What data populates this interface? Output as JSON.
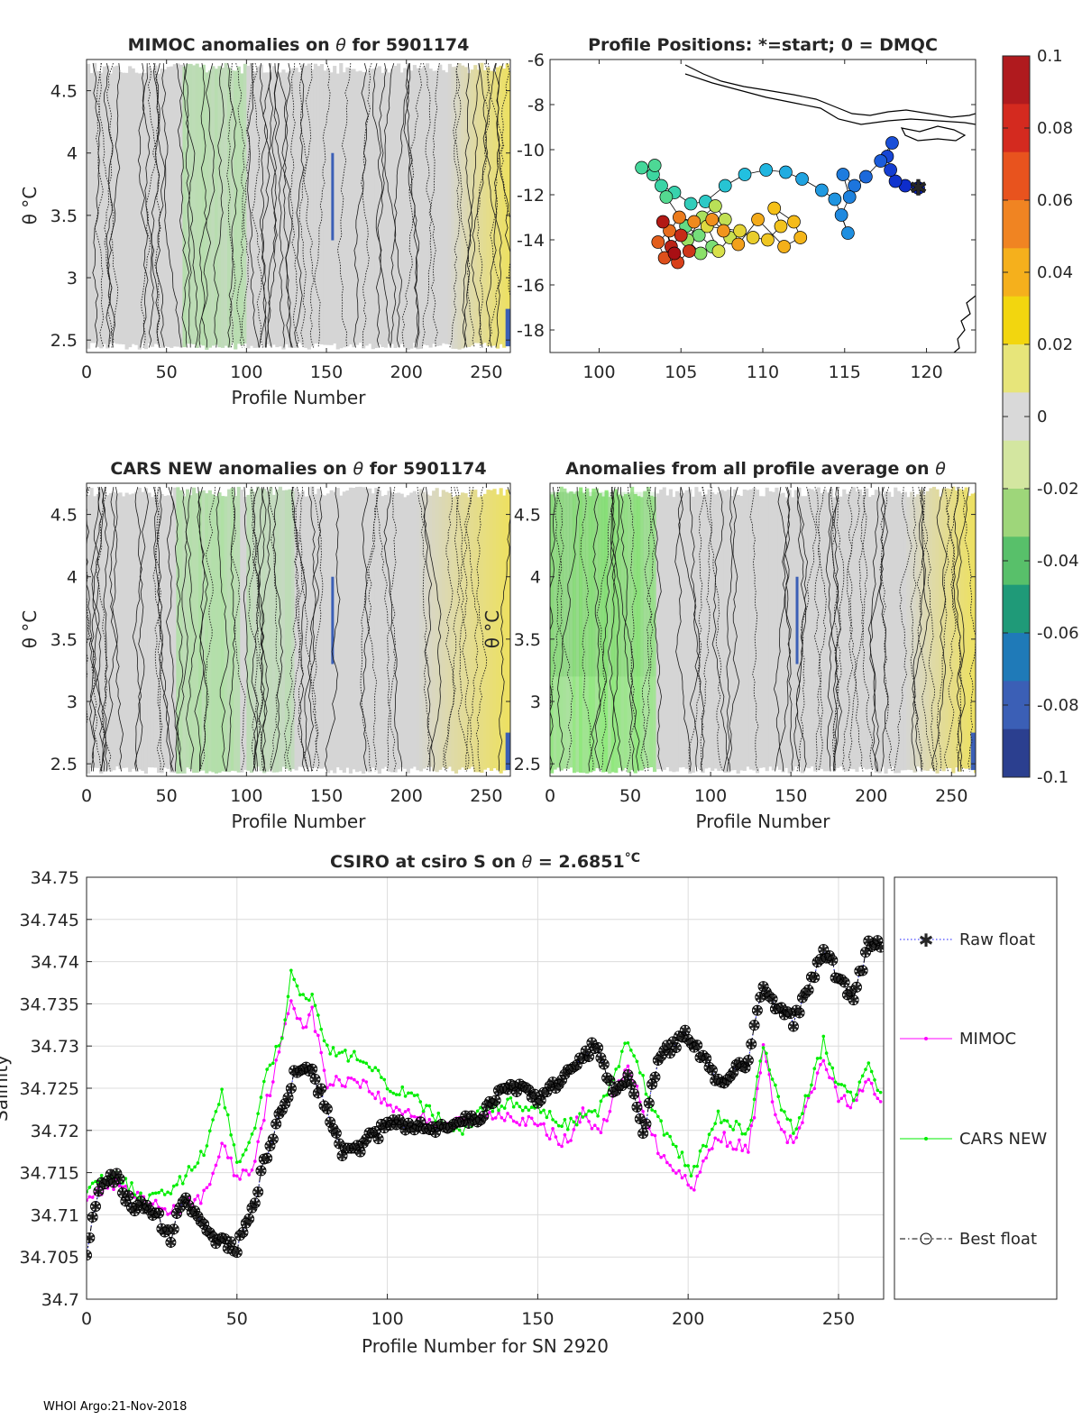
{
  "footer": "WHOI Argo:21-Nov-2018",
  "chart_data": [
    {
      "type": "heatmap",
      "title_prefix": "MIMOC anomalies on ",
      "theta_symbol": "θ",
      "title_suffix": "  for 5901174",
      "xlabel": "Profile Number",
      "ylabel": "θ °C",
      "xlim": [
        0,
        265
      ],
      "ylim": [
        2.4,
        4.75
      ],
      "xticks": [
        "0",
        "50",
        "100",
        "150",
        "200",
        "250"
      ],
      "yticks": [
        "2.5",
        "3",
        "3.5",
        "4",
        "4.5"
      ],
      "base_color": "#d5d5d5"
    },
    {
      "type": "scatter",
      "title": "Profile Positions: *=start; 0 = DMQC",
      "xlim": [
        97,
        123
      ],
      "ylim": [
        -19,
        -6
      ],
      "xticks": [
        "100",
        "105",
        "110",
        "115",
        "120"
      ],
      "yticks": [
        "-6",
        "-8",
        "-10",
        "-12",
        "-14",
        "-16",
        "-18"
      ],
      "start_marker": [
        119.5,
        -11.7
      ],
      "track": [
        {
          "lon": 119.5,
          "lat": -11.7,
          "c": 0.0
        },
        {
          "lon": 118.7,
          "lat": -11.6,
          "c": 0.02
        },
        {
          "lon": 118.1,
          "lat": -11.4,
          "c": 0.04
        },
        {
          "lon": 117.8,
          "lat": -10.9,
          "c": 0.06
        },
        {
          "lon": 117.6,
          "lat": -10.3,
          "c": 0.08
        },
        {
          "lon": 117.9,
          "lat": -9.7,
          "c": 0.1
        },
        {
          "lon": 117.2,
          "lat": -10.5,
          "c": 0.12
        },
        {
          "lon": 116.3,
          "lat": -11.2,
          "c": 0.14
        },
        {
          "lon": 115.6,
          "lat": -11.6,
          "c": 0.16
        },
        {
          "lon": 114.9,
          "lat": -11.1,
          "c": 0.17
        },
        {
          "lon": 115.3,
          "lat": -12.1,
          "c": 0.18
        },
        {
          "lon": 114.8,
          "lat": -12.9,
          "c": 0.19
        },
        {
          "lon": 115.2,
          "lat": -13.7,
          "c": 0.2
        },
        {
          "lon": 114.4,
          "lat": -12.2,
          "c": 0.21
        },
        {
          "lon": 113.6,
          "lat": -11.8,
          "c": 0.22
        },
        {
          "lon": 112.4,
          "lat": -11.3,
          "c": 0.24
        },
        {
          "lon": 111.4,
          "lat": -11.0,
          "c": 0.26
        },
        {
          "lon": 110.2,
          "lat": -10.9,
          "c": 0.28
        },
        {
          "lon": 108.9,
          "lat": -11.1,
          "c": 0.3
        },
        {
          "lon": 107.7,
          "lat": -11.6,
          "c": 0.32
        },
        {
          "lon": 106.5,
          "lat": -12.3,
          "c": 0.34
        },
        {
          "lon": 105.6,
          "lat": -12.4,
          "c": 0.36
        },
        {
          "lon": 104.6,
          "lat": -11.9,
          "c": 0.38
        },
        {
          "lon": 103.8,
          "lat": -11.6,
          "c": 0.39
        },
        {
          "lon": 103.3,
          "lat": -11.1,
          "c": 0.4
        },
        {
          "lon": 102.6,
          "lat": -10.8,
          "c": 0.41
        },
        {
          "lon": 103.4,
          "lat": -10.7,
          "c": 0.42
        },
        {
          "lon": 104.1,
          "lat": -12.1,
          "c": 0.43
        },
        {
          "lon": 105.3,
          "lat": -13.4,
          "c": 0.45
        },
        {
          "lon": 106.1,
          "lat": -13.8,
          "c": 0.47
        },
        {
          "lon": 106.9,
          "lat": -14.3,
          "c": 0.48
        },
        {
          "lon": 106.2,
          "lat": -14.6,
          "c": 0.5
        },
        {
          "lon": 105.4,
          "lat": -14.0,
          "c": 0.52
        },
        {
          "lon": 106.3,
          "lat": -13.0,
          "c": 0.54
        },
        {
          "lon": 107.1,
          "lat": -12.5,
          "c": 0.56
        },
        {
          "lon": 107.7,
          "lat": -13.1,
          "c": 0.57
        },
        {
          "lon": 108.0,
          "lat": -13.9,
          "c": 0.58
        },
        {
          "lon": 107.3,
          "lat": -14.5,
          "c": 0.6
        },
        {
          "lon": 106.6,
          "lat": -13.4,
          "c": 0.62
        },
        {
          "lon": 108.6,
          "lat": -13.6,
          "c": 0.64
        },
        {
          "lon": 109.4,
          "lat": -13.9,
          "c": 0.66
        },
        {
          "lon": 110.3,
          "lat": -14.0,
          "c": 0.68
        },
        {
          "lon": 111.1,
          "lat": -13.4,
          "c": 0.69
        },
        {
          "lon": 110.7,
          "lat": -12.6,
          "c": 0.7
        },
        {
          "lon": 111.9,
          "lat": -13.2,
          "c": 0.71
        },
        {
          "lon": 112.3,
          "lat": -13.9,
          "c": 0.72
        },
        {
          "lon": 111.3,
          "lat": -14.3,
          "c": 0.73
        },
        {
          "lon": 109.7,
          "lat": -13.1,
          "c": 0.74
        },
        {
          "lon": 108.5,
          "lat": -14.2,
          "c": 0.76
        },
        {
          "lon": 107.6,
          "lat": -13.6,
          "c": 0.78
        },
        {
          "lon": 106.9,
          "lat": -13.1,
          "c": 0.79
        },
        {
          "lon": 105.8,
          "lat": -13.2,
          "c": 0.8
        },
        {
          "lon": 104.9,
          "lat": -13.0,
          "c": 0.82
        },
        {
          "lon": 104.3,
          "lat": -13.6,
          "c": 0.84
        },
        {
          "lon": 103.6,
          "lat": -14.1,
          "c": 0.86
        },
        {
          "lon": 104.0,
          "lat": -14.8,
          "c": 0.88
        },
        {
          "lon": 104.8,
          "lat": -15.0,
          "c": 0.9
        },
        {
          "lon": 105.5,
          "lat": -14.5,
          "c": 0.92
        },
        {
          "lon": 105.0,
          "lat": -13.8,
          "c": 0.94
        },
        {
          "lon": 104.4,
          "lat": -14.3,
          "c": 0.96
        },
        {
          "lon": 103.9,
          "lat": -13.2,
          "c": 0.98
        },
        {
          "lon": 104.6,
          "lat": -14.6,
          "c": 1.0
        }
      ]
    },
    {
      "type": "heatmap",
      "title_prefix": "CARS NEW anomalies on ",
      "theta_symbol": "θ",
      "title_suffix": " for 5901174",
      "xlabel": "Profile Number",
      "ylabel": "θ °C",
      "xlim": [
        0,
        265
      ],
      "ylim": [
        2.4,
        4.75
      ],
      "xticks": [
        "0",
        "50",
        "100",
        "150",
        "200",
        "250"
      ],
      "yticks": [
        "2.5",
        "3",
        "3.5",
        "4",
        "4.5"
      ],
      "base_color": "#d5d5d5"
    },
    {
      "type": "heatmap",
      "title_prefix": "Anomalies from all profile average on ",
      "theta_symbol": "θ",
      "title_suffix": "",
      "xlabel": "Profile Number",
      "ylabel": "θ °C",
      "xlim": [
        0,
        265
      ],
      "ylim": [
        2.4,
        4.75
      ],
      "xticks": [
        "0",
        "50",
        "100",
        "150",
        "200",
        "250"
      ],
      "yticks": [
        "2.5",
        "3",
        "3.5",
        "4",
        "4.5"
      ],
      "base_color": "#d5d5d5"
    },
    {
      "type": "colorbar",
      "ticks": [
        "0.1",
        "0.08",
        "0.06",
        "0.04",
        "0.02",
        "0",
        "-0.02",
        "-0.04",
        "-0.06",
        "-0.08",
        "-0.1"
      ],
      "colors": [
        "#b01a1e",
        "#d42a1f",
        "#e8531e",
        "#f08422",
        "#f5b01c",
        "#f2d60f",
        "#e7e57a",
        "#d9d9d9",
        "#d3e6a0",
        "#9ed67a",
        "#58c06a",
        "#1f9a78",
        "#1f7ab8",
        "#3b5fb6",
        "#2b3f8f"
      ]
    },
    {
      "type": "line",
      "title_prefix": "CSIRO at csiro S on ",
      "theta_symbol": "θ",
      "title_suffix": " = 2.6851",
      "title_unit": "°C",
      "xlabel": "Profile Number for SN 2920",
      "ylabel": "Salinity",
      "xlim": [
        0,
        265
      ],
      "ylim": [
        34.7,
        34.75
      ],
      "xticks": [
        "0",
        "50",
        "100",
        "150",
        "200",
        "250"
      ],
      "yticks": [
        "34.7",
        "34.705",
        "34.71",
        "34.715",
        "34.72",
        "34.725",
        "34.73",
        "34.735",
        "34.74",
        "34.745",
        "34.75"
      ],
      "legend": [
        "Raw float",
        "MIMOC",
        "CARS NEW",
        "Best float"
      ],
      "series": [
        {
          "name": "MIMOC",
          "color": "#ff00ff",
          "knots_x": [
            0,
            10,
            20,
            30,
            40,
            45,
            50,
            55,
            60,
            65,
            68,
            72,
            75,
            80,
            90,
            100,
            110,
            120,
            130,
            140,
            150,
            160,
            165,
            170,
            180,
            190,
            200,
            201,
            210,
            220,
            225,
            230,
            235,
            240,
            245,
            250,
            255,
            260,
            264
          ],
          "knots_y": [
            34.7125,
            34.7135,
            34.7112,
            34.7105,
            34.7125,
            34.7185,
            34.7145,
            34.7155,
            34.7235,
            34.7305,
            34.7355,
            34.7325,
            34.734,
            34.7255,
            34.7262,
            34.723,
            34.7218,
            34.7205,
            34.7215,
            34.722,
            34.7205,
            34.7185,
            34.7225,
            34.7195,
            34.7275,
            34.7178,
            34.7138,
            34.713,
            34.7195,
            34.7175,
            34.7295,
            34.7205,
            34.7182,
            34.7232,
            34.7285,
            34.7235,
            34.7235,
            34.7255,
            34.7232
          ]
        },
        {
          "name": "CARS NEW",
          "color": "#00ee00",
          "knots_x": [
            0,
            10,
            20,
            30,
            40,
            45,
            50,
            55,
            60,
            65,
            68,
            72,
            75,
            80,
            90,
            100,
            110,
            120,
            125,
            130,
            140,
            150,
            160,
            165,
            170,
            180,
            190,
            200,
            201,
            210,
            220,
            225,
            230,
            235,
            240,
            245,
            250,
            255,
            260,
            264
          ],
          "knots_y": [
            34.7135,
            34.7145,
            34.7115,
            34.7135,
            34.718,
            34.7245,
            34.7165,
            34.7195,
            34.7265,
            34.7315,
            34.7385,
            34.7355,
            34.7365,
            34.7295,
            34.7285,
            34.7255,
            34.7235,
            34.7205,
            34.7195,
            34.722,
            34.7232,
            34.7222,
            34.7205,
            34.7215,
            34.7225,
            34.7305,
            34.7212,
            34.7155,
            34.7148,
            34.7215,
            34.7195,
            34.7305,
            34.7238,
            34.7198,
            34.7245,
            34.7305,
            34.7255,
            34.7235,
            34.7275,
            34.7248
          ]
        },
        {
          "name": "Raw float",
          "color": "#1a1aff",
          "knots_x": [
            0,
            5,
            10,
            15,
            20,
            25,
            28,
            32,
            36,
            40,
            45,
            50,
            55,
            60,
            65,
            70,
            75,
            80,
            85,
            90,
            100,
            110,
            120,
            130,
            140,
            150,
            160,
            165,
            170,
            175,
            180,
            185,
            190,
            200,
            210,
            220,
            225,
            230,
            235,
            240,
            245,
            250,
            255,
            260,
            264
          ],
          "knots_y": [
            34.706,
            34.7135,
            34.7145,
            34.711,
            34.7115,
            34.709,
            34.7075,
            34.712,
            34.71,
            34.7085,
            34.7065,
            34.7062,
            34.7105,
            34.7175,
            34.7225,
            34.7275,
            34.727,
            34.7225,
            34.7175,
            34.718,
            34.7205,
            34.7205,
            34.7205,
            34.7215,
            34.7255,
            34.7235,
            34.7265,
            34.7285,
            34.7305,
            34.7245,
            34.727,
            34.7195,
            34.7285,
            34.7315,
            34.7255,
            34.7285,
            34.7375,
            34.7345,
            34.733,
            34.7365,
            34.7415,
            34.738,
            34.7355,
            34.742,
            34.7425
          ]
        },
        {
          "name": "Best float",
          "color": "#000000",
          "knots_x": [
            0,
            5,
            10,
            15,
            20,
            25,
            28,
            32,
            36,
            40,
            45,
            50,
            55,
            60,
            65,
            70,
            75,
            80,
            85,
            90,
            100,
            110,
            120,
            130,
            140,
            150,
            160,
            165,
            170,
            175,
            180,
            185,
            190,
            200,
            210,
            220,
            225,
            230,
            235,
            240,
            245,
            250,
            255,
            260,
            264
          ],
          "knots_y": [
            34.706,
            34.7135,
            34.7145,
            34.711,
            34.7115,
            34.709,
            34.7075,
            34.712,
            34.71,
            34.7085,
            34.7065,
            34.7062,
            34.7105,
            34.7175,
            34.7225,
            34.7275,
            34.727,
            34.7225,
            34.7175,
            34.718,
            34.7205,
            34.7205,
            34.7205,
            34.7215,
            34.7255,
            34.7235,
            34.7265,
            34.7285,
            34.7305,
            34.7245,
            34.727,
            34.7195,
            34.7285,
            34.7315,
            34.7255,
            34.7285,
            34.7375,
            34.7345,
            34.733,
            34.7365,
            34.7415,
            34.738,
            34.7355,
            34.742,
            34.7425
          ]
        }
      ]
    }
  ]
}
